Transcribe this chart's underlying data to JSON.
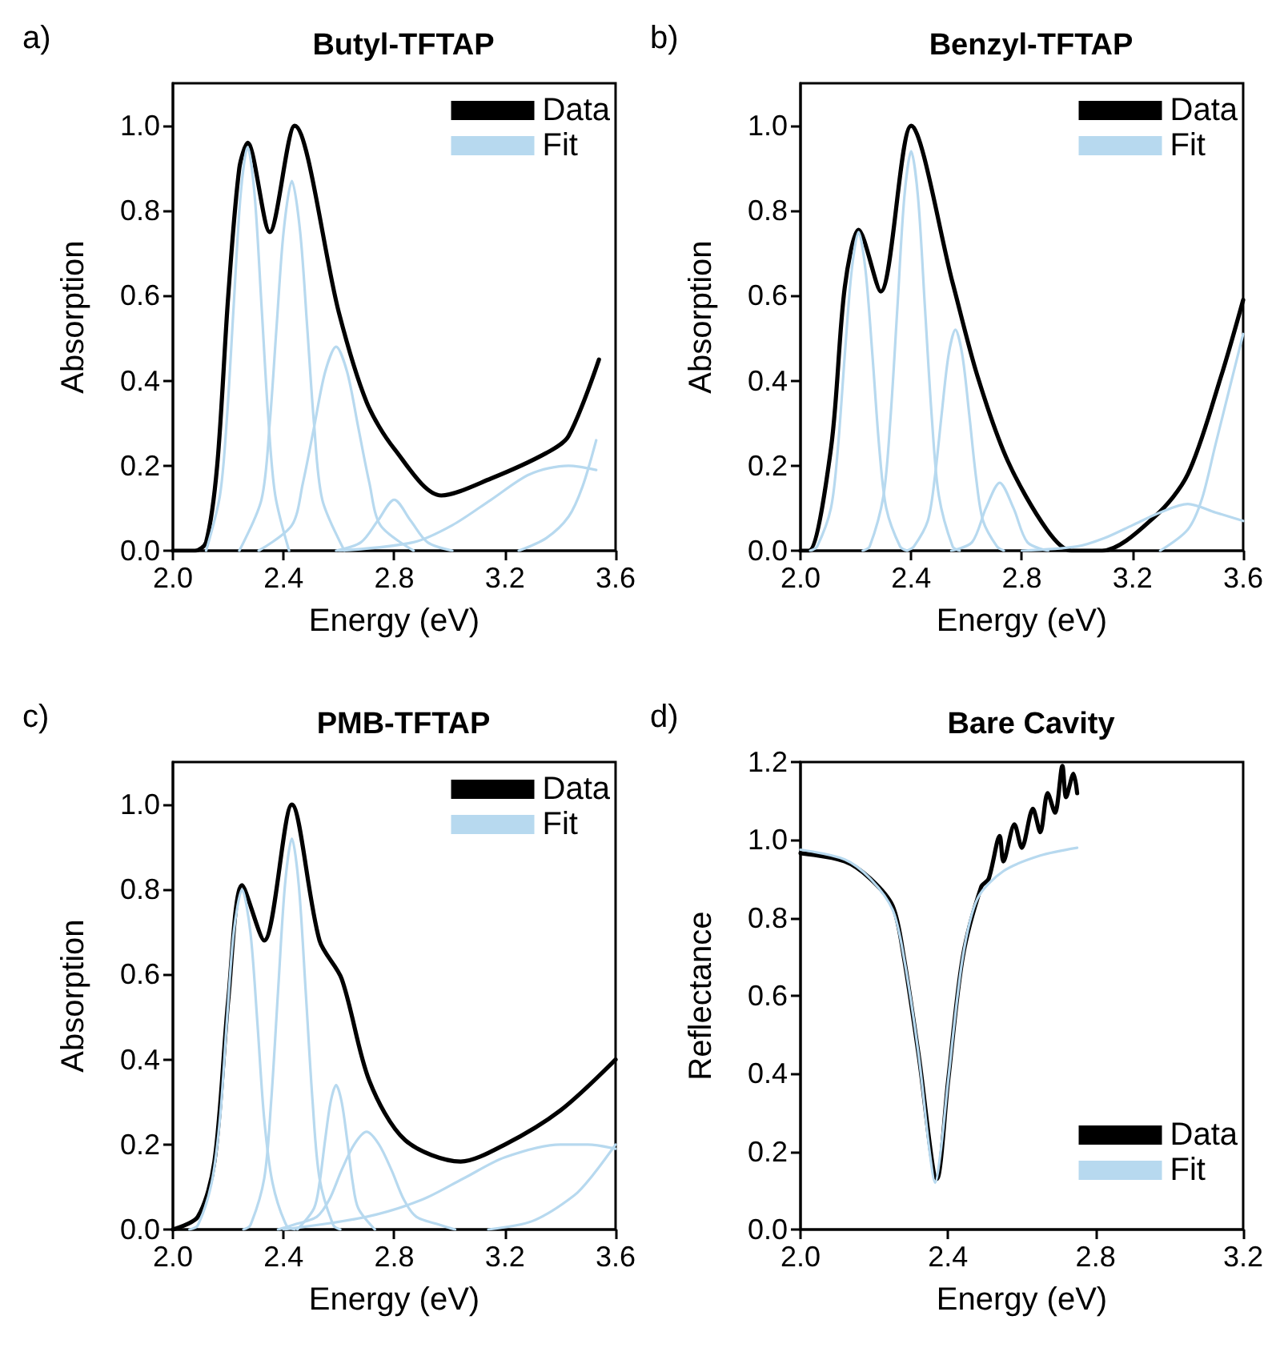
{
  "chart_data": [
    {
      "type": "line",
      "title": "Butyl-TFTAP",
      "xlabel": "Energy (eV)",
      "ylabel": "Absorption",
      "annotations": [
        "a)"
      ],
      "legend": "top right",
      "xlim": [
        2.0,
        3.6
      ],
      "ylim": [
        0,
        1.1
      ],
      "xticks": [
        {
          "value": 2,
          "label": "2.0"
        },
        {
          "value": 2.4,
          "label": "2.4"
        },
        {
          "value": 2.8,
          "label": "2.8"
        },
        {
          "value": 3.2,
          "label": "3.2"
        },
        {
          "value": 3.6,
          "label": "3.6"
        }
      ],
      "yticks": [
        {
          "value": 0,
          "label": "0.0"
        },
        {
          "value": 0.2,
          "label": "0.2"
        },
        {
          "value": 0.4,
          "label": "0.4"
        },
        {
          "value": 0.6,
          "label": "0.6"
        },
        {
          "value": 0.8,
          "label": "0.8"
        },
        {
          "value": 1,
          "label": "1.0"
        }
      ],
      "series": [
        {
          "name": "Data",
          "color": "#000000",
          "x": [
            2.0,
            2.08,
            2.12,
            2.16,
            2.2,
            2.24,
            2.27,
            2.35,
            2.44,
            2.6,
            2.7,
            2.8,
            2.97,
            3.15,
            3.35,
            3.43,
            3.54
          ],
          "values": [
            0,
            0,
            0.02,
            0.2,
            0.6,
            0.9,
            0.96,
            0.75,
            1.0,
            0.56,
            0.35,
            0.24,
            0.13,
            0.17,
            0.23,
            0.27,
            0.45
          ]
        },
        {
          "name": "Fit",
          "color": "#b7d9ef",
          "x": [
            2.12,
            2.17,
            2.195,
            2.22,
            2.245,
            2.27,
            2.295,
            2.32,
            2.345,
            2.37,
            2.42
          ],
          "values": [
            0,
            0.13,
            0.31,
            0.58,
            0.84,
            0.95,
            0.84,
            0.58,
            0.31,
            0.13,
            0
          ]
        },
        {
          "color": "#b7d9ef",
          "x": [
            2.24,
            2.32,
            2.35,
            2.375,
            2.4,
            2.43,
            2.46,
            2.485,
            2.51,
            2.54,
            2.62
          ],
          "values": [
            0,
            0.12,
            0.3,
            0.53,
            0.75,
            0.87,
            0.75,
            0.53,
            0.3,
            0.12,
            0
          ]
        },
        {
          "color": "#b7d9ef",
          "x": [
            2.31,
            2.43,
            2.47,
            2.51,
            2.55,
            2.59,
            2.63,
            2.67,
            2.71,
            2.75,
            2.87
          ],
          "values": [
            0,
            0.06,
            0.16,
            0.29,
            0.42,
            0.48,
            0.42,
            0.29,
            0.16,
            0.06,
            0
          ]
        },
        {
          "color": "#b7d9ef",
          "x": [
            2.59,
            2.68,
            2.74,
            2.8,
            2.86,
            2.92,
            3.01
          ],
          "values": [
            0,
            0.02,
            0.07,
            0.12,
            0.07,
            0.02,
            0
          ]
        },
        {
          "color": "#b7d9ef",
          "x": [
            2.6,
            2.87,
            3.01,
            3.15,
            3.29,
            3.43,
            3.53
          ],
          "values": [
            0,
            0.02,
            0.06,
            0.12,
            0.18,
            0.2,
            0.19
          ]
        },
        {
          "color": "#b7d9ef",
          "x": [
            3.25,
            3.35,
            3.43,
            3.48,
            3.53
          ],
          "values": [
            0,
            0.03,
            0.08,
            0.15,
            0.26
          ]
        }
      ]
    },
    {
      "type": "line",
      "title": "Benzyl-TFTAP",
      "xlabel": "Energy (eV)",
      "ylabel": "Absorption",
      "annotations": [
        "b)"
      ],
      "legend": "top right",
      "xlim": [
        2.0,
        3.6
      ],
      "ylim": [
        0,
        1.1
      ],
      "xticks": [
        {
          "value": 2,
          "label": "2.0"
        },
        {
          "value": 2.4,
          "label": "2.4"
        },
        {
          "value": 2.8,
          "label": "2.8"
        },
        {
          "value": 3.2,
          "label": "3.2"
        },
        {
          "value": 3.6,
          "label": "3.6"
        }
      ],
      "yticks": [
        {
          "value": 0,
          "label": "0.0"
        },
        {
          "value": 0.2,
          "label": "0.2"
        },
        {
          "value": 0.4,
          "label": "0.4"
        },
        {
          "value": 0.6,
          "label": "0.6"
        },
        {
          "value": 0.8,
          "label": "0.8"
        },
        {
          "value": 1,
          "label": "1.0"
        }
      ],
      "series": [
        {
          "name": "Data",
          "color": "#000000",
          "x": [
            2.0,
            2.03,
            2.11,
            2.16,
            2.21,
            2.29,
            2.4,
            2.55,
            2.64,
            2.75,
            2.89,
            2.98,
            3.09,
            3.28,
            3.4,
            3.52,
            3.6
          ],
          "values": [
            0,
            0,
            0.24,
            0.62,
            0.755,
            0.61,
            1.0,
            0.63,
            0.41,
            0.21,
            0.05,
            0,
            0,
            0.08,
            0.18,
            0.41,
            0.59
          ]
        },
        {
          "name": "Fit",
          "color": "#b7d9ef",
          "x": [
            2.035,
            2.06,
            2.11,
            2.135,
            2.16,
            2.185,
            2.21,
            2.235,
            2.26,
            2.285,
            2.31,
            2.36,
            2.385
          ],
          "values": [
            0,
            0.01,
            0.1,
            0.24,
            0.46,
            0.66,
            0.75,
            0.66,
            0.46,
            0.24,
            0.1,
            0.01,
            0
          ]
        },
        {
          "color": "#b7d9ef",
          "x": [
            2.225,
            2.25,
            2.3,
            2.325,
            2.35,
            2.375,
            2.4,
            2.425,
            2.45,
            2.475,
            2.5,
            2.55,
            2.575
          ],
          "values": [
            0,
            0.01,
            0.13,
            0.31,
            0.57,
            0.83,
            0.94,
            0.83,
            0.57,
            0.31,
            0.13,
            0.01,
            0
          ]
        },
        {
          "color": "#b7d9ef",
          "x": [
            2.385,
            2.41,
            2.46,
            2.485,
            2.51,
            2.535,
            2.56,
            2.585,
            2.61,
            2.635,
            2.66,
            2.71,
            2.735
          ],
          "values": [
            0,
            0.01,
            0.07,
            0.17,
            0.32,
            0.46,
            0.52,
            0.46,
            0.32,
            0.17,
            0.07,
            0.01,
            0
          ]
        },
        {
          "color": "#b7d9ef",
          "x": [
            2.545,
            2.62,
            2.67,
            2.72,
            2.77,
            2.82,
            2.895
          ],
          "values": [
            0,
            0.02,
            0.1,
            0.16,
            0.1,
            0.02,
            0
          ]
        },
        {
          "color": "#b7d9ef",
          "x": [
            2.8,
            3.0,
            3.1,
            3.2,
            3.3,
            3.4,
            3.5,
            3.6
          ],
          "values": [
            0,
            0.01,
            0.03,
            0.06,
            0.09,
            0.11,
            0.09,
            0.07
          ]
        },
        {
          "color": "#b7d9ef",
          "x": [
            3.3,
            3.4,
            3.45,
            3.5,
            3.55,
            3.6
          ],
          "values": [
            0,
            0.05,
            0.12,
            0.25,
            0.38,
            0.51
          ]
        }
      ]
    },
    {
      "type": "line",
      "title": "PMB-TFTAP",
      "xlabel": "Energy (eV)",
      "ylabel": "Absorption",
      "annotations": [
        "c)"
      ],
      "legend": "top right",
      "xlim": [
        2.0,
        3.6
      ],
      "ylim": [
        0,
        1.1
      ],
      "xticks": [
        {
          "value": 2,
          "label": "2.0"
        },
        {
          "value": 2.4,
          "label": "2.4"
        },
        {
          "value": 2.8,
          "label": "2.8"
        },
        {
          "value": 3.2,
          "label": "3.2"
        },
        {
          "value": 3.6,
          "label": "3.6"
        }
      ],
      "yticks": [
        {
          "value": 0,
          "label": "0.0"
        },
        {
          "value": 0.2,
          "label": "0.2"
        },
        {
          "value": 0.4,
          "label": "0.4"
        },
        {
          "value": 0.6,
          "label": "0.6"
        },
        {
          "value": 0.8,
          "label": "0.8"
        },
        {
          "value": 1,
          "label": "1.0"
        }
      ],
      "series": [
        {
          "name": "Data",
          "color": "#000000",
          "x": [
            2.0,
            2.09,
            2.15,
            2.2,
            2.25,
            2.33,
            2.43,
            2.53,
            2.61,
            2.71,
            2.84,
            3.04,
            3.2,
            3.4,
            3.6
          ],
          "values": [
            0,
            0.03,
            0.16,
            0.54,
            0.81,
            0.68,
            1.0,
            0.68,
            0.59,
            0.35,
            0.21,
            0.16,
            0.2,
            0.28,
            0.4
          ]
        },
        {
          "name": "Fit",
          "color": "#b7d9ef",
          "x": [
            2.06,
            2.09,
            2.14,
            2.17,
            2.195,
            2.22,
            2.25,
            2.28,
            2.305,
            2.33,
            2.36,
            2.41,
            2.44
          ],
          "values": [
            0,
            0.01,
            0.11,
            0.26,
            0.49,
            0.7,
            0.8,
            0.7,
            0.49,
            0.26,
            0.11,
            0.01,
            0
          ]
        },
        {
          "color": "#b7d9ef",
          "x": [
            2.255,
            2.28,
            2.33,
            2.355,
            2.38,
            2.405,
            2.43,
            2.455,
            2.48,
            2.505,
            2.53,
            2.58,
            2.605
          ],
          "values": [
            0,
            0.01,
            0.12,
            0.3,
            0.56,
            0.81,
            0.92,
            0.81,
            0.56,
            0.3,
            0.12,
            0.01,
            0
          ]
        },
        {
          "color": "#b7d9ef",
          "x": [
            2.45,
            2.51,
            2.53,
            2.55,
            2.57,
            2.59,
            2.61,
            2.63,
            2.65,
            2.67,
            2.73
          ],
          "values": [
            0,
            0.05,
            0.11,
            0.21,
            0.3,
            0.34,
            0.3,
            0.21,
            0.11,
            0.05,
            0
          ]
        },
        {
          "color": "#b7d9ef",
          "x": [
            2.38,
            2.43,
            2.52,
            2.565,
            2.61,
            2.655,
            2.7,
            2.745,
            2.79,
            2.835,
            2.88,
            2.97,
            3.02
          ],
          "values": [
            0,
            0.01,
            0.03,
            0.07,
            0.14,
            0.2,
            0.23,
            0.2,
            0.14,
            0.07,
            0.03,
            0.01,
            0
          ]
        },
        {
          "color": "#b7d9ef",
          "x": [
            2.4,
            2.7,
            2.9,
            3.05,
            3.2,
            3.4,
            3.5,
            3.6
          ],
          "values": [
            0,
            0.03,
            0.07,
            0.12,
            0.17,
            0.2,
            0.2,
            0.19
          ]
        },
        {
          "color": "#b7d9ef",
          "x": [
            3.14,
            3.3,
            3.45,
            3.52,
            3.6
          ],
          "values": [
            0,
            0.02,
            0.08,
            0.13,
            0.2
          ]
        }
      ]
    },
    {
      "type": "line",
      "title": "Bare Cavity",
      "xlabel": "Energy (eV)",
      "ylabel": "Reflectance",
      "annotations": [
        "d)"
      ],
      "legend": "bottom right",
      "xlim": [
        2.0,
        3.2
      ],
      "ylim": [
        0,
        1.2
      ],
      "xticks": [
        {
          "value": 2,
          "label": "2.0"
        },
        {
          "value": 2.4,
          "label": "2.4"
        },
        {
          "value": 2.8,
          "label": "2.8"
        },
        {
          "value": 3.2,
          "label": "3.2"
        }
      ],
      "yticks": [
        {
          "value": 0,
          "label": "0.0"
        },
        {
          "value": 0.2,
          "label": "0.2"
        },
        {
          "value": 0.4,
          "label": "0.4"
        },
        {
          "value": 0.6,
          "label": "0.6"
        },
        {
          "value": 0.8,
          "label": "0.8"
        },
        {
          "value": 1,
          "label": "1.0"
        },
        {
          "value": 1.2,
          "label": "1.2"
        }
      ],
      "series": [
        {
          "name": "Data",
          "color": "#000000",
          "x": [
            2.0,
            2.12,
            2.19,
            2.25,
            2.28,
            2.32,
            2.37,
            2.4,
            2.44,
            2.49,
            2.51,
            2.54,
            2.55,
            2.58,
            2.6,
            2.63,
            2.65,
            2.67,
            2.69,
            2.71,
            2.72,
            2.74,
            2.75
          ],
          "values": [
            0.966,
            0.945,
            0.9,
            0.83,
            0.7,
            0.45,
            0.13,
            0.38,
            0.7,
            0.88,
            0.9,
            1.01,
            0.945,
            1.04,
            0.98,
            1.08,
            1.02,
            1.12,
            1.07,
            1.19,
            1.11,
            1.17,
            1.12
          ]
        },
        {
          "name": "Fit",
          "color": "#b7d9ef",
          "x": [
            2.0,
            2.12,
            2.19,
            2.25,
            2.28,
            2.32,
            2.35,
            2.365,
            2.38,
            2.4,
            2.44,
            2.48,
            2.55,
            2.65,
            2.75
          ],
          "values": [
            0.975,
            0.95,
            0.9,
            0.82,
            0.7,
            0.45,
            0.2,
            0.12,
            0.2,
            0.38,
            0.7,
            0.85,
            0.92,
            0.96,
            0.98
          ]
        }
      ]
    }
  ]
}
